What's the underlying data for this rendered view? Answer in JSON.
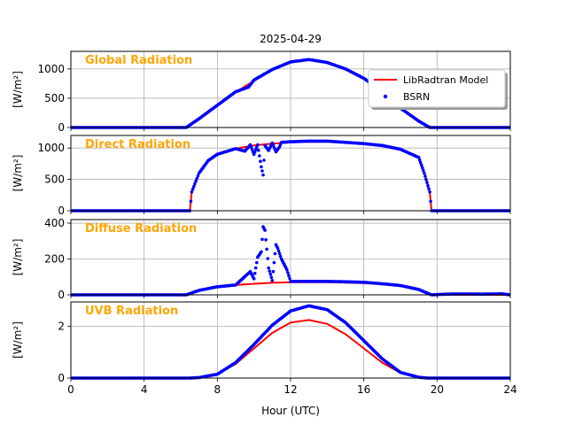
{
  "chart_data": {
    "type": "line",
    "title": "2025-04-29",
    "xlabel": "Hour (UTC)",
    "xlim": [
      0,
      24
    ],
    "x_ticks": [
      "0",
      "4",
      "8",
      "12",
      "16",
      "20",
      "24"
    ],
    "legend": {
      "placement": "top-right of first panel",
      "entries": [
        "LibRadtran Model",
        "BSRN"
      ]
    },
    "colors": {
      "model": "#ff0000",
      "bsrn": "#0000ff",
      "panel_label": "#ffa500",
      "grid": "#b0b0b0"
    },
    "grid": true,
    "panels": [
      {
        "label": "Global Radiation",
        "ylabel": "[W/m²]",
        "ylim": [
          0,
          1300
        ],
        "y_ticks": [
          0,
          500,
          1000
        ],
        "model": {
          "name": "LibRadtran Model",
          "x": [
            0,
            6.3,
            7,
            8,
            9,
            10,
            11,
            12,
            13,
            14,
            15,
            16,
            17,
            18,
            19,
            19.6,
            24
          ],
          "y": [
            0,
            0,
            150,
            380,
            600,
            800,
            980,
            1110,
            1160,
            1110,
            1000,
            840,
            620,
            330,
            110,
            0,
            0
          ]
        },
        "bsrn": {
          "name": "BSRN",
          "x": [
            0,
            6.3,
            7,
            8,
            9,
            9.7,
            10,
            11,
            12,
            13,
            14,
            15,
            16,
            17,
            18,
            19,
            19.6,
            24
          ],
          "y": [
            0,
            0,
            150,
            380,
            610,
            690,
            810,
            990,
            1120,
            1160,
            1110,
            1000,
            840,
            620,
            330,
            110,
            0,
            0
          ]
        }
      },
      {
        "label": "Direct Radiation",
        "ylabel": "[W/m²]",
        "ylim": [
          0,
          1200
        ],
        "y_ticks": [
          0,
          500,
          1000
        ],
        "model": {
          "name": "LibRadtran Model",
          "x": [
            0,
            6.5,
            6.6,
            7,
            7.5,
            8,
            9,
            10,
            11,
            12,
            13,
            14,
            15,
            16,
            17,
            18,
            19,
            19.3,
            19.6,
            19.7,
            24
          ],
          "y": [
            0,
            0,
            300,
            600,
            800,
            900,
            990,
            1040,
            1070,
            1090,
            1100,
            1100,
            1090,
            1070,
            1040,
            980,
            850,
            600,
            300,
            0,
            0
          ]
        },
        "bsrn": {
          "name": "BSRN",
          "x": [
            0,
            6.5,
            6.6,
            7,
            7.5,
            8,
            9,
            9.5,
            9.8,
            10,
            10.2,
            10.4,
            10.5,
            10.6,
            10.8,
            11,
            11.2,
            11.4,
            11.5,
            12,
            13,
            14,
            15,
            16,
            17,
            18,
            19,
            19.3,
            19.6,
            19.7,
            24
          ],
          "y": [
            0,
            0,
            300,
            600,
            800,
            900,
            990,
            950,
            1050,
            900,
            1050,
            700,
            570,
            1040,
            960,
            1080,
            940,
            1020,
            1090,
            1100,
            1110,
            1110,
            1090,
            1070,
            1040,
            980,
            850,
            600,
            300,
            0,
            0
          ]
        }
      },
      {
        "label": "Diffuse Radiation",
        "ylabel": "[W/m²]",
        "ylim": [
          0,
          420
        ],
        "y_ticks": [
          0,
          200,
          400
        ],
        "model": {
          "name": "LibRadtran Model",
          "x": [
            0,
            6.3,
            7,
            8,
            9,
            10,
            11,
            12,
            13,
            14,
            15,
            16,
            17,
            18,
            19,
            19.7,
            24
          ],
          "y": [
            0,
            0,
            25,
            45,
            55,
            62,
            67,
            70,
            70,
            70,
            68,
            65,
            60,
            50,
            30,
            0,
            0
          ]
        },
        "bsrn": {
          "name": "BSRN",
          "x": [
            0,
            6.3,
            7,
            8,
            9,
            9.8,
            10,
            10.2,
            10.4,
            10.5,
            10.6,
            10.8,
            11,
            11.2,
            11.3,
            11.5,
            11.8,
            12,
            13,
            14,
            15,
            16,
            17,
            18,
            19,
            19.7,
            20.5,
            21.5,
            22.5,
            23.5,
            24
          ],
          "y": [
            0,
            0,
            25,
            45,
            55,
            130,
            90,
            210,
            240,
            380,
            360,
            150,
            80,
            280,
            260,
            200,
            140,
            75,
            75,
            75,
            73,
            70,
            62,
            52,
            30,
            0,
            4,
            5,
            4,
            6,
            0
          ]
        }
      },
      {
        "label": "UVB Radiation",
        "ylabel": "[W/m²]",
        "ylim": [
          0,
          2.95
        ],
        "y_ticks": [
          0,
          2
        ],
        "model": {
          "name": "LibRadtran Model",
          "x": [
            0,
            6.5,
            7,
            8,
            9,
            10,
            11,
            12,
            13,
            14,
            15,
            16,
            17,
            18,
            19,
            19.5,
            24
          ],
          "y": [
            0,
            0,
            0.02,
            0.15,
            0.55,
            1.15,
            1.75,
            2.15,
            2.25,
            2.1,
            1.7,
            1.15,
            0.6,
            0.2,
            0.03,
            0,
            0
          ]
        },
        "bsrn": {
          "name": "BSRN",
          "x": [
            0,
            6.5,
            7,
            8,
            9,
            10,
            11,
            12,
            13,
            14,
            15,
            16,
            17,
            18,
            19,
            19.5,
            24
          ],
          "y": [
            0,
            0,
            0.02,
            0.15,
            0.6,
            1.3,
            2.05,
            2.6,
            2.8,
            2.65,
            2.15,
            1.45,
            0.75,
            0.22,
            0.03,
            0,
            0
          ]
        }
      }
    ]
  }
}
